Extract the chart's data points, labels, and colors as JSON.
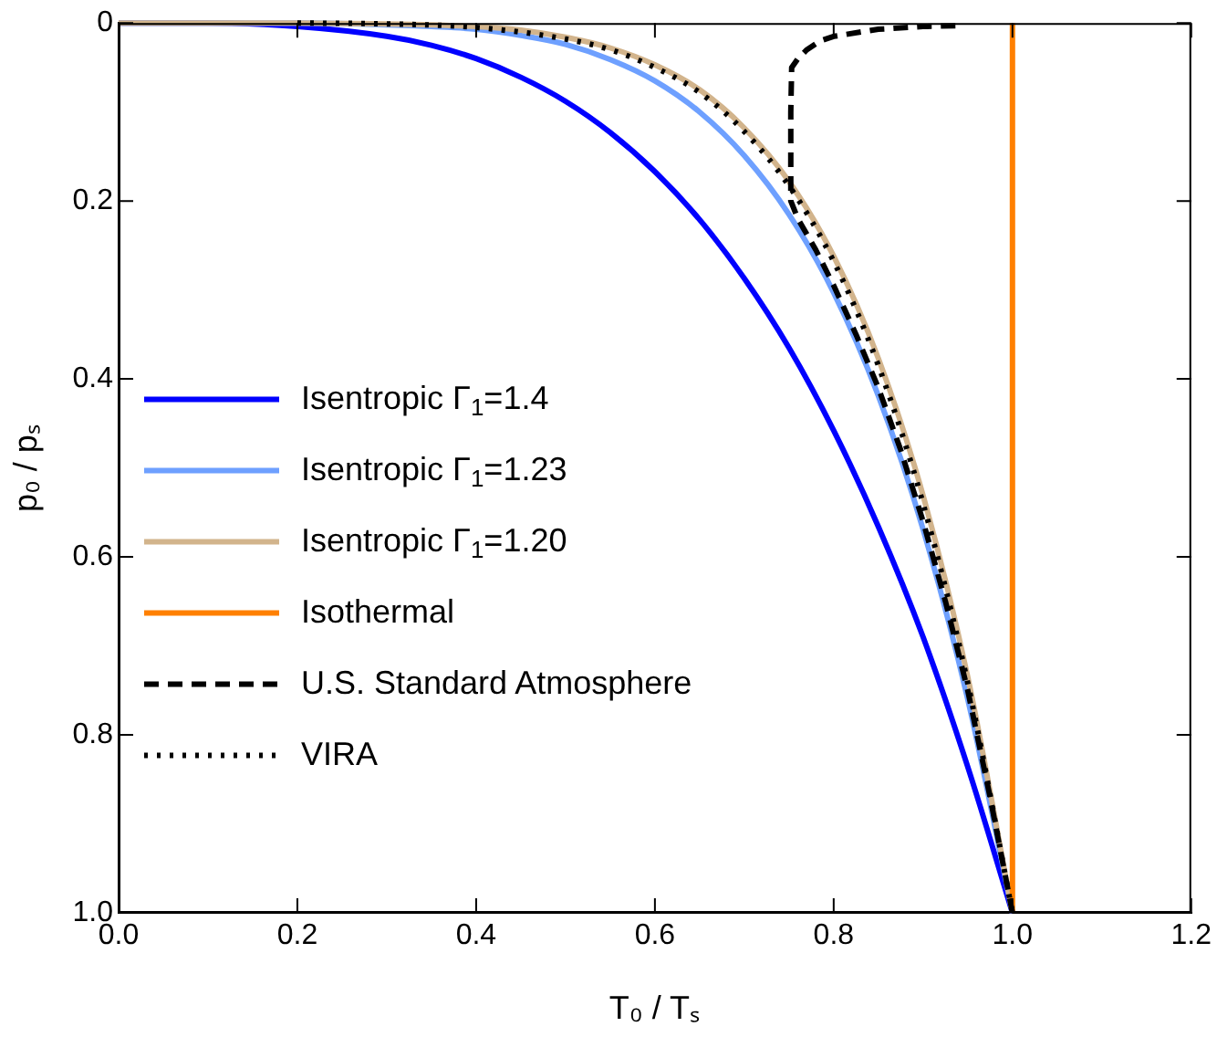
{
  "chart_data": {
    "type": "line",
    "xlabel": "T₀ / Tₛ",
    "ylabel": "p₀ / pₛ",
    "xlim": [
      0,
      1.2
    ],
    "ylim": [
      1,
      0
    ],
    "xticks": [
      {
        "value": 0,
        "label": "0.0"
      },
      {
        "value": 0.2,
        "label": "0.2"
      },
      {
        "value": 0.4,
        "label": "0.4"
      },
      {
        "value": 0.6,
        "label": "0.6"
      },
      {
        "value": 0.8,
        "label": "0.8"
      },
      {
        "value": 1,
        "label": "1.0"
      },
      {
        "value": 1.2,
        "label": "1.2"
      }
    ],
    "yticks": [
      {
        "value": 0,
        "label": "0"
      },
      {
        "value": 0.2,
        "label": "0.2"
      },
      {
        "value": 0.4,
        "label": "0.4"
      },
      {
        "value": 0.6,
        "label": "0.6"
      },
      {
        "value": 0.8,
        "label": "0.8"
      },
      {
        "value": 1,
        "label": "1.0"
      }
    ],
    "grid": false,
    "legend": "center left",
    "marker": "none",
    "series": [
      {
        "name": "Isentropic Γ$_{1}$=1.4",
        "color": "#0000ff",
        "line_style": "solid",
        "x": [
          0,
          0.1,
          0.2,
          0.3,
          0.35,
          0.4,
          0.45,
          0.5,
          0.55,
          0.6,
          0.65,
          0.7,
          0.75,
          0.8,
          0.85,
          0.9,
          0.95,
          1
        ],
        "values": [
          0,
          0,
          0.004,
          0.015,
          0.025,
          0.04,
          0.061,
          0.088,
          0.123,
          0.167,
          0.221,
          0.287,
          0.365,
          0.458,
          0.566,
          0.69,
          0.836,
          1
        ]
      },
      {
        "name": "Isentropic Γ$_{1}$=1.23",
        "color": "#6ea0ff",
        "line_style": "solid",
        "x": [
          0,
          0.1,
          0.2,
          0.3,
          0.35,
          0.4,
          0.45,
          0.5,
          0.55,
          0.6,
          0.65,
          0.7,
          0.75,
          0.8,
          0.85,
          0.9,
          0.95,
          1
        ],
        "values": [
          0,
          0,
          0,
          0.002,
          0.004,
          0.007,
          0.014,
          0.024,
          0.041,
          0.065,
          0.1,
          0.149,
          0.215,
          0.303,
          0.419,
          0.569,
          0.76,
          1
        ]
      },
      {
        "name": "Isentropic Γ$_{1}$=1.20",
        "color": "#d2b48c",
        "line_style": "solid",
        "x": [
          0,
          0.1,
          0.2,
          0.3,
          0.35,
          0.4,
          0.45,
          0.5,
          0.55,
          0.6,
          0.65,
          0.7,
          0.75,
          0.8,
          0.85,
          0.9,
          0.95,
          1
        ],
        "values": [
          0,
          0,
          0,
          0.001,
          0.002,
          0.004,
          0.008,
          0.016,
          0.028,
          0.047,
          0.075,
          0.118,
          0.178,
          0.262,
          0.377,
          0.531,
          0.735,
          1
        ]
      },
      {
        "name": "Isothermal",
        "color": "#ff8000",
        "line_style": "solid",
        "x": [
          1,
          1
        ],
        "values": [
          0,
          1
        ]
      },
      {
        "name": "U.S. Standard Atmosphere",
        "color": "#000000",
        "line_style": "dashed",
        "x": [
          1,
          0.975,
          0.95,
          0.925,
          0.9,
          0.875,
          0.85,
          0.825,
          0.8,
          0.78,
          0.76,
          0.752,
          0.752,
          0.753,
          0.76,
          0.77,
          0.785,
          0.8,
          0.85,
          0.9,
          0.94
        ],
        "values": [
          1,
          0.87,
          0.75,
          0.65,
          0.56,
          0.48,
          0.41,
          0.35,
          0.295,
          0.255,
          0.22,
          0.2,
          0.1,
          0.05,
          0.04,
          0.03,
          0.02,
          0.015,
          0.007,
          0.004,
          0.003
        ]
      },
      {
        "name": "VIRA",
        "color": "#000000",
        "line_style": "dotted",
        "x": [
          0.2,
          0.3,
          0.4,
          0.5,
          0.55,
          0.6,
          0.65,
          0.7,
          0.75,
          0.8,
          0.85,
          0.9,
          0.95,
          1
        ],
        "values": [
          0,
          0.001,
          0.005,
          0.018,
          0.03,
          0.05,
          0.078,
          0.122,
          0.183,
          0.268,
          0.385,
          0.54,
          0.742,
          1
        ]
      }
    ]
  }
}
